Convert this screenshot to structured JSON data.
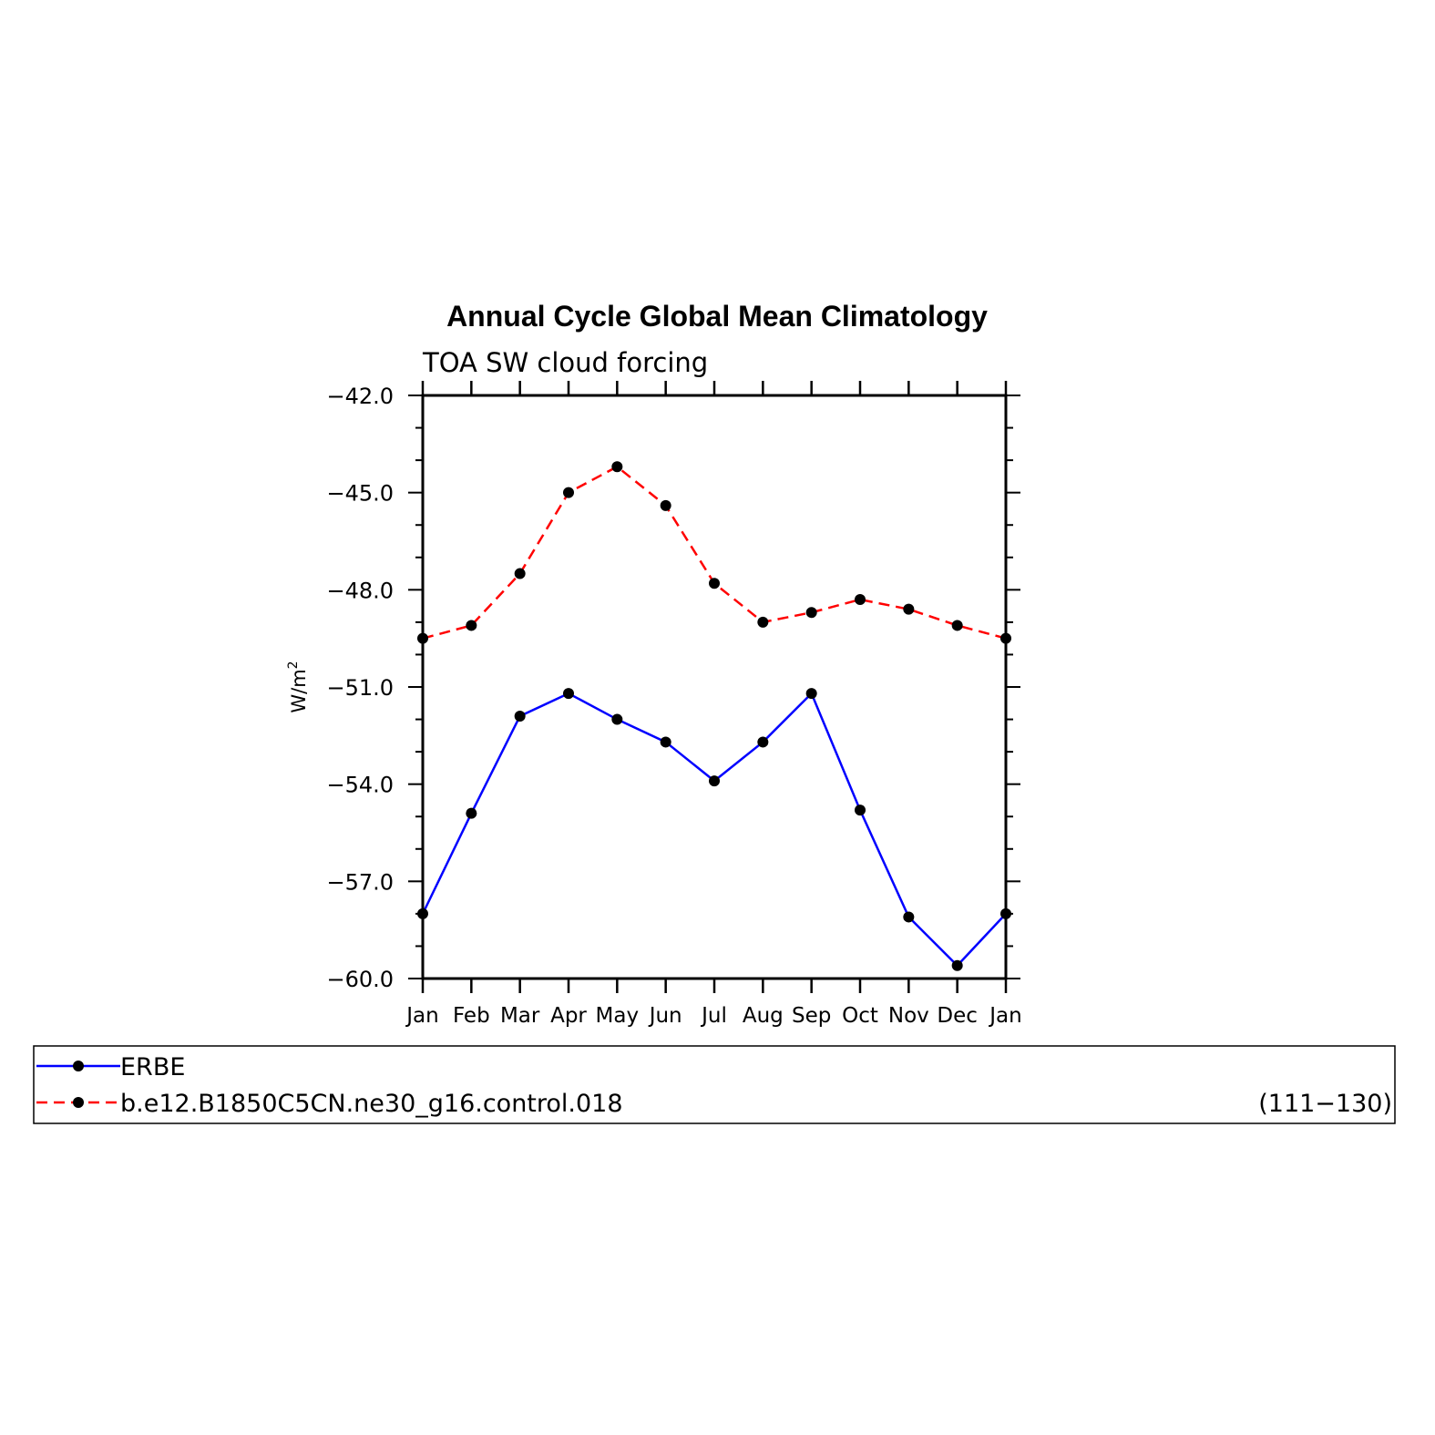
{
  "chart_data": {
    "type": "line",
    "title": "Annual Cycle Global Mean Climatology",
    "subtitle": "TOA SW cloud forcing",
    "ylabel": "W/m",
    "ylabel_superscript": "2",
    "categories": [
      "Jan",
      "Feb",
      "Mar",
      "Apr",
      "May",
      "Jun",
      "Jul",
      "Aug",
      "Sep",
      "Oct",
      "Nov",
      "Dec",
      "Jan"
    ],
    "ylim": [
      -60.0,
      -42.0
    ],
    "yticks": [
      "-42.0",
      "-45.0",
      "-48.0",
      "-51.0",
      "-54.0",
      "-57.0",
      "-60.0"
    ],
    "ytick_values": [
      -42,
      -45,
      -48,
      -51,
      -54,
      -57,
      -60
    ],
    "series": [
      {
        "name": "ERBE",
        "color": "#0000ff",
        "style": "solid",
        "values": [
          -58.0,
          -54.9,
          -51.9,
          -51.2,
          -52.0,
          -52.7,
          -53.9,
          -52.7,
          -51.2,
          -54.8,
          -58.1,
          -59.6,
          -58.0
        ]
      },
      {
        "name": "b.e12.B1850C5CN.ne30_g16.control.018",
        "color": "#ff0000",
        "style": "dashed",
        "values": [
          -49.5,
          -49.1,
          -47.5,
          -45.0,
          -44.2,
          -45.4,
          -47.8,
          -49.0,
          -48.7,
          -48.3,
          -48.6,
          -49.1,
          -49.5
        ]
      }
    ],
    "legend": {
      "position": "bottom",
      "entries": [
        "ERBE",
        "b.e12.B1850C5CN.ne30_g16.control.018"
      ],
      "note": "(111−130)"
    },
    "grid": false
  }
}
